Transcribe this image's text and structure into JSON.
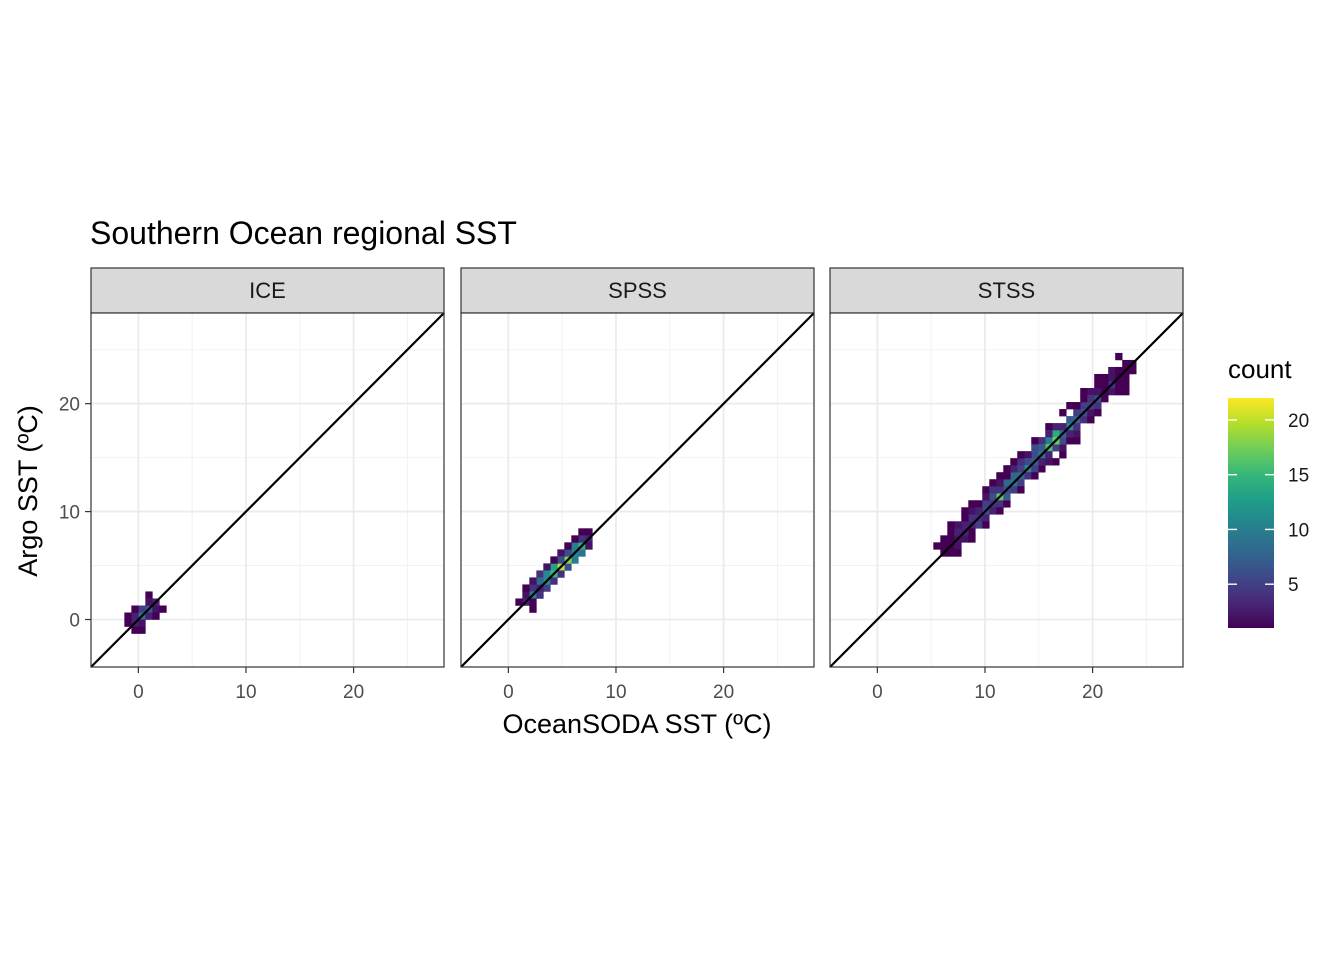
{
  "chart_data": {
    "type": "heatmap",
    "title": "Southern Ocean regional SST",
    "xlabel": "OceanSODA SST (ºC)",
    "ylabel": "Argo SST (ºC)",
    "xlim": [
      -4.4,
      28.4
    ],
    "ylim": [
      -4.4,
      28.4
    ],
    "x_ticks": [
      0,
      10,
      20
    ],
    "y_ticks": [
      0,
      10,
      20
    ],
    "grid": true,
    "reference_line": "y = x",
    "legend": {
      "title": "count",
      "placement": "right",
      "range": [
        1,
        22
      ],
      "ticks": [
        5,
        10,
        15,
        20
      ],
      "colormap": [
        "#440154",
        "#482878",
        "#3e4989",
        "#31688e",
        "#26828e",
        "#1f9e89",
        "#35b779",
        "#6ece58",
        "#b5de2b",
        "#fde725"
      ]
    },
    "panels": [
      {
        "name": "ICE",
        "clusters": [
          {
            "center": [
              0.5,
              0.6
            ],
            "spread": 1.1,
            "half_width": 0.55,
            "n": 90,
            "peak": 9
          }
        ]
      },
      {
        "name": "SPSS",
        "clusters": [
          {
            "center": [
              4.5,
              4.6
            ],
            "spread": 3.0,
            "half_width": 0.7,
            "n": 220,
            "peak": 20
          }
        ]
      },
      {
        "name": "STSS",
        "clusters": [
          {
            "center": [
              14.8,
              15.0
            ],
            "spread": 8.5,
            "half_width": 1.0,
            "n": 700,
            "peak": 17
          }
        ]
      }
    ]
  }
}
